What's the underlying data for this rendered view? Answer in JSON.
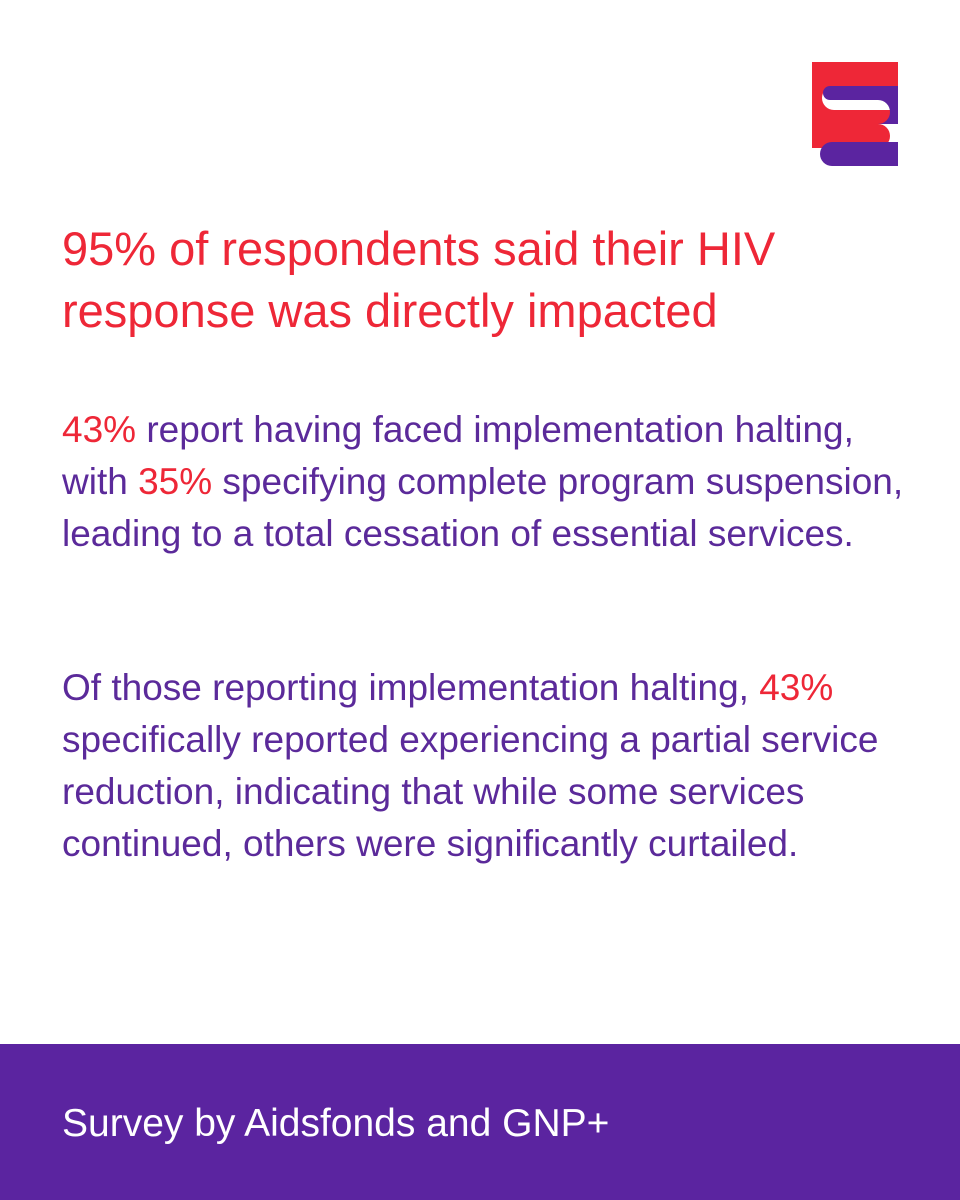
{
  "brand": {
    "logo_icon": "aidsfonds-logo-icon",
    "colors": {
      "red": "#ee2737",
      "purple": "#5b24a0",
      "text_purple": "#5b2a9a"
    }
  },
  "headline": "95% of respondents said their HIV response was directly impacted",
  "paragraph_1": {
    "stat_1": "43%",
    "text_1": " report having faced implementation halting, with ",
    "stat_2": "35%",
    "text_2": " specifying complete program suspension, leading to a total cessation of essential services."
  },
  "paragraph_2": {
    "text_1": "Of those reporting implementation halting, ",
    "stat_1": "43%",
    "text_2": " specifically reported experiencing a partial service reduction, indicating that while some services continued, others were significantly curtailed."
  },
  "footer": {
    "source": "Survey by Aidsfonds and GNP+"
  }
}
